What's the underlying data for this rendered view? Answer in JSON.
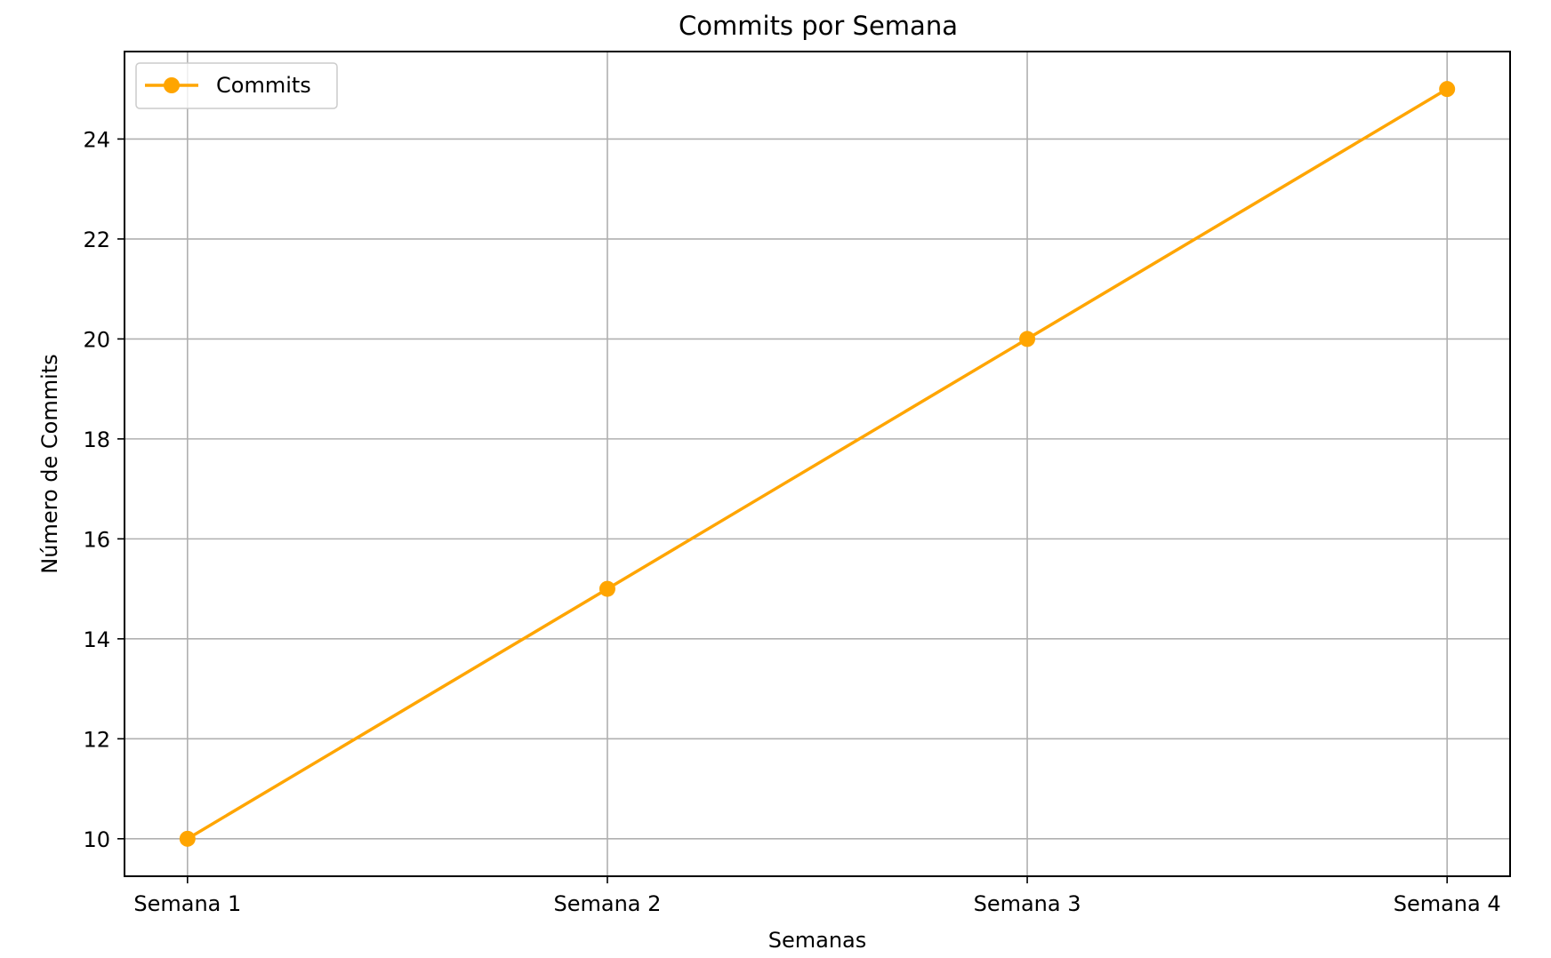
{
  "chart_data": {
    "type": "line",
    "title": "Commits por Semana",
    "xlabel": "Semanas",
    "ylabel": "Número de Commits",
    "categories": [
      "Semana 1",
      "Semana 2",
      "Semana 3",
      "Semana 4"
    ],
    "series": [
      {
        "name": "Commits",
        "values": [
          10,
          15,
          20,
          25
        ],
        "color": "#ffa500",
        "marker": "circle"
      }
    ],
    "ylim": [
      9.25,
      25.75
    ],
    "yticks": [
      10,
      12,
      14,
      16,
      18,
      20,
      22,
      24
    ],
    "grid": true,
    "legend_position": "top-left"
  }
}
